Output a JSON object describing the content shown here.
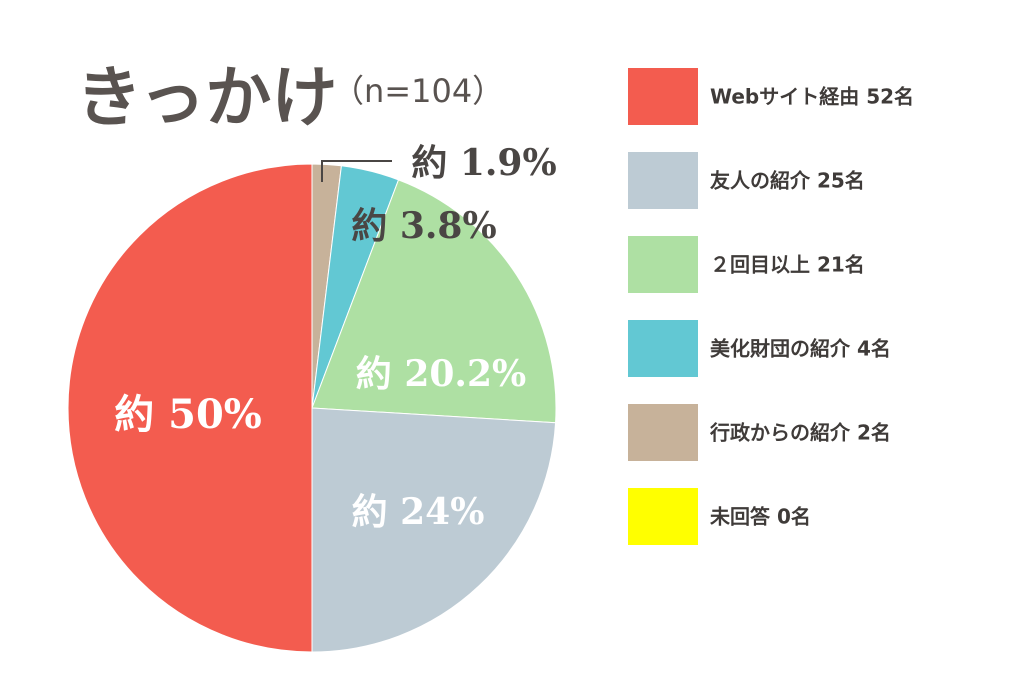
{
  "chart_data": {
    "type": "pie",
    "title": "きっかけ",
    "subtitle": "（n=104）",
    "slices": [
      {
        "legend": "Webサイト経由 52名",
        "value": 52,
        "label": "約 50%",
        "color": "#f35c4f"
      },
      {
        "legend": "友人の紹介 25名",
        "value": 25,
        "label": "約 24%",
        "color": "#bdcbd4"
      },
      {
        "legend": "２回目以上 21名",
        "value": 21,
        "label": "約 20.2%",
        "color": "#aee0a3"
      },
      {
        "legend": "美化財団の紹介 4名",
        "value": 4,
        "label": "約 3.8%",
        "color": "#62c8d3"
      },
      {
        "legend": "行政からの紹介 2名",
        "value": 2,
        "label": "約 1.9%",
        "color": "#c7b29a"
      },
      {
        "legend": "未回答 0名",
        "value": 0,
        "label": "",
        "color": "#ffff00"
      }
    ],
    "legend_position": "right"
  }
}
